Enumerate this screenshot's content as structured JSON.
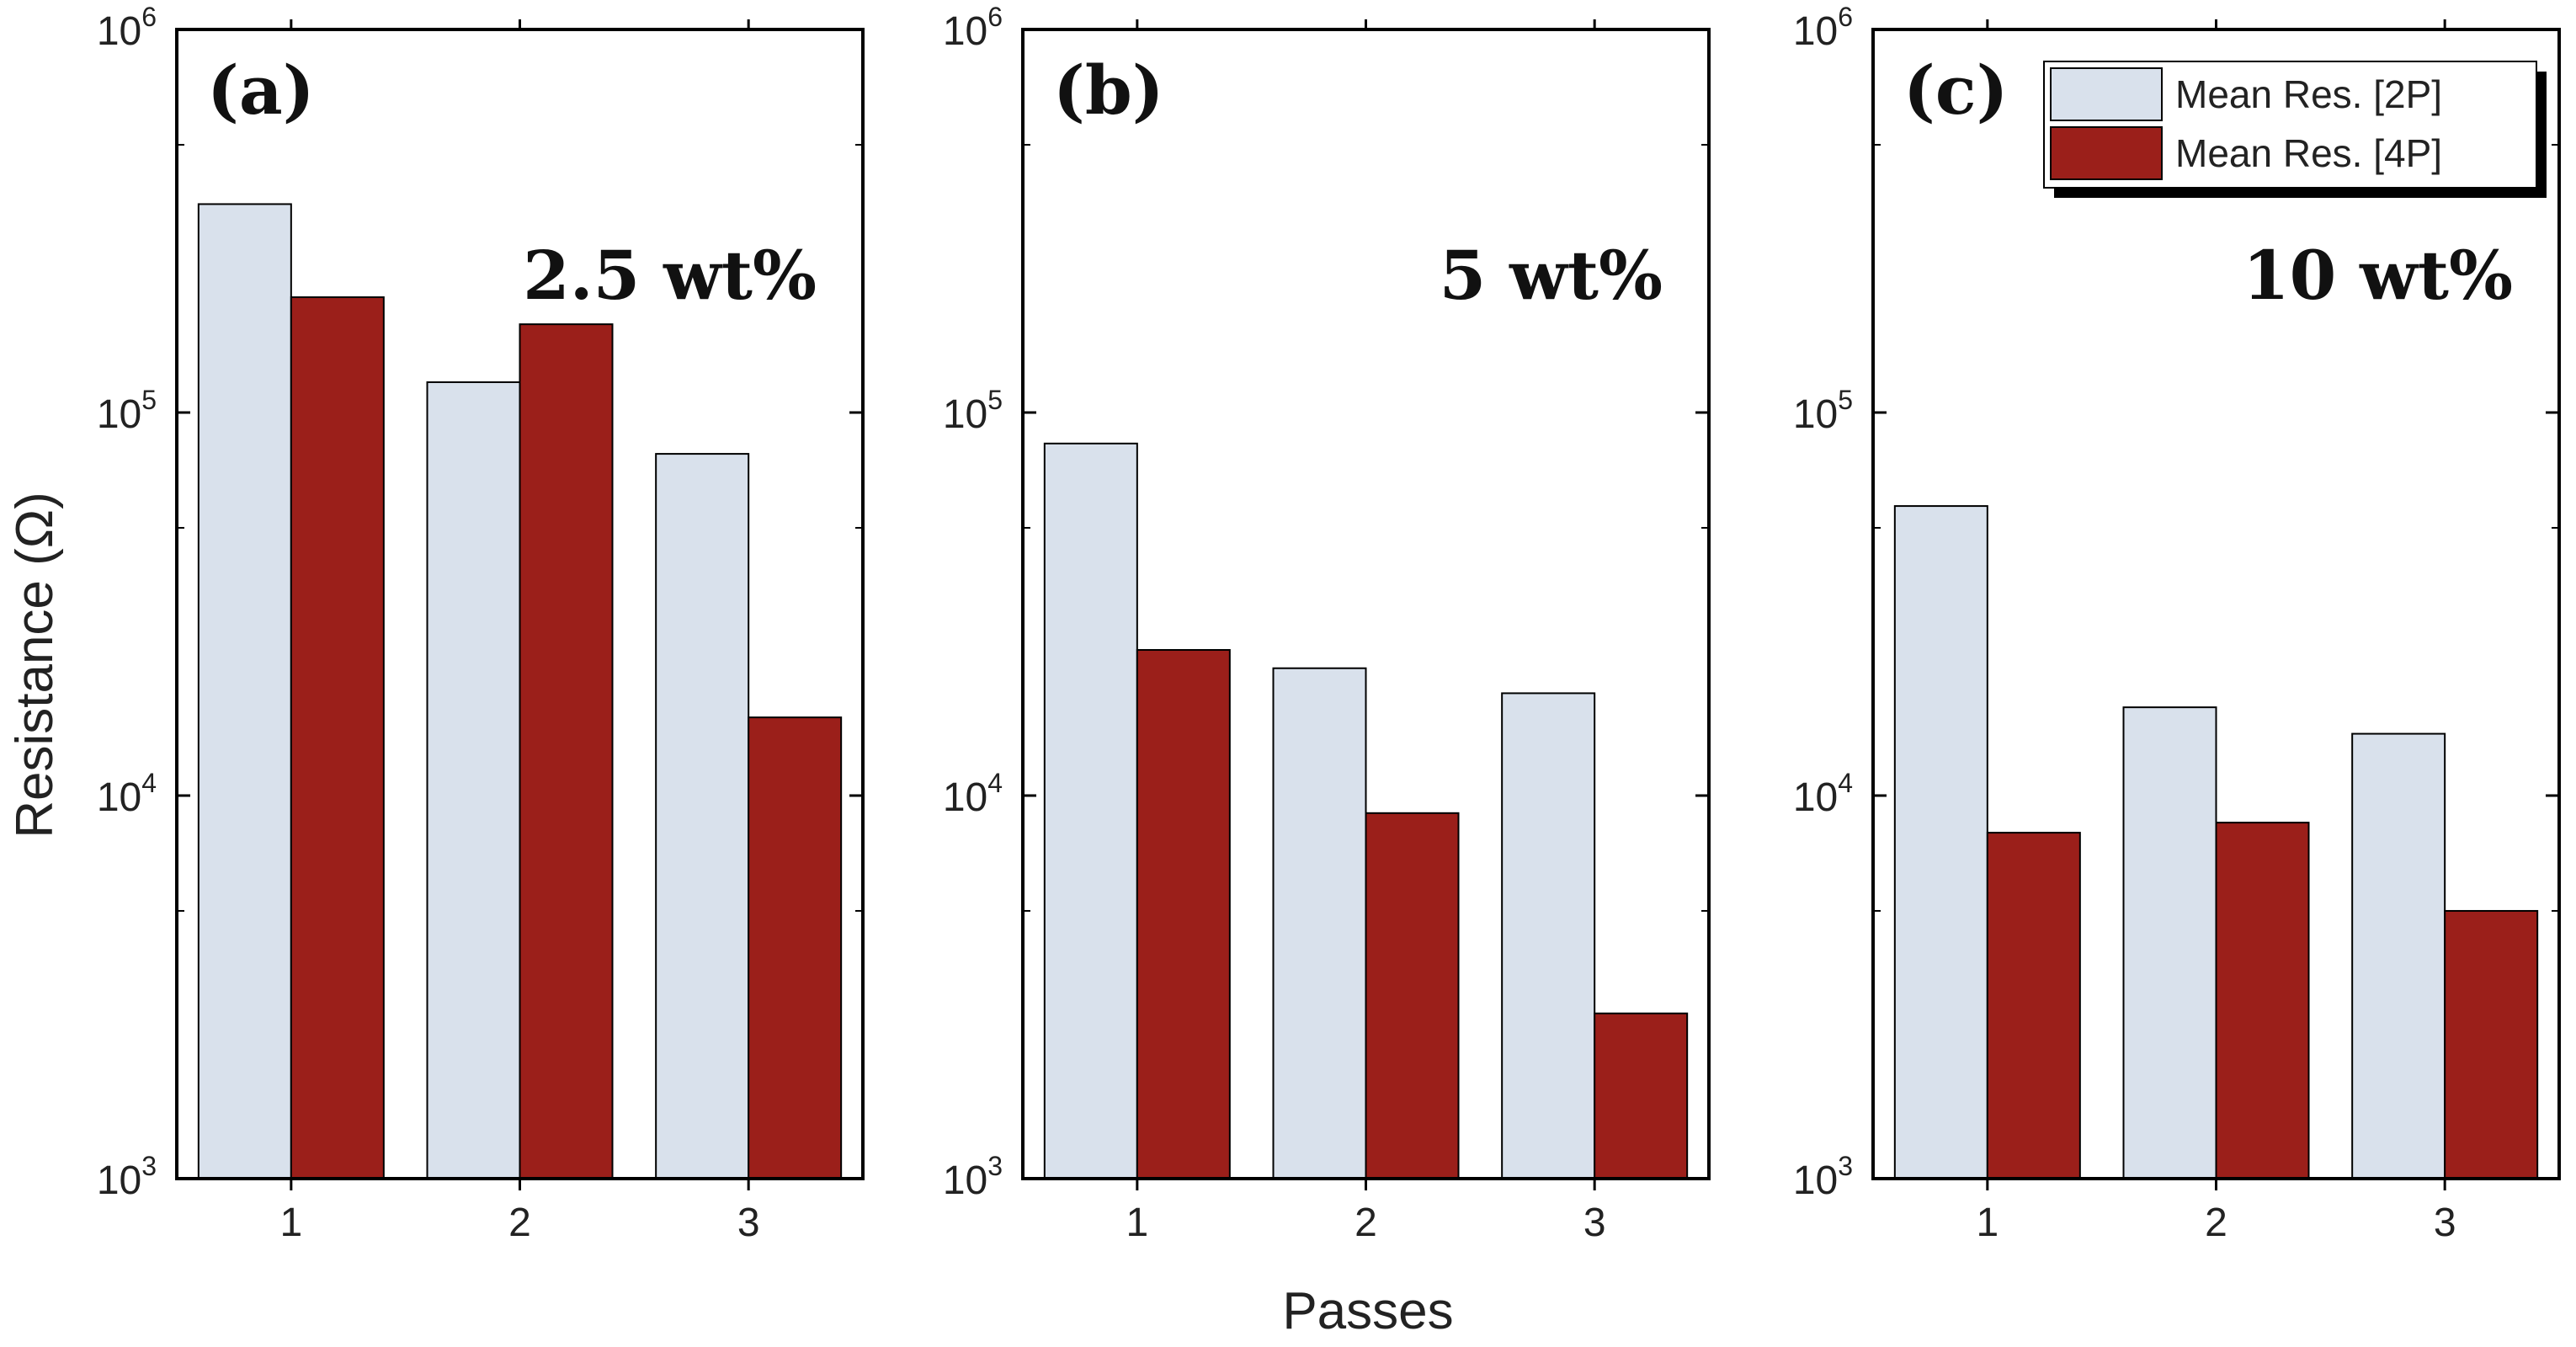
{
  "chart_data": [
    {
      "type": "bar",
      "panel_label": "(a)",
      "annotation": "2.5 wt%",
      "categories": [
        "1",
        "2",
        "3"
      ],
      "series": [
        {
          "name": "Mean Res. [2P]",
          "color": "#d9e1ec",
          "values": [
            350000,
            120000,
            78000
          ]
        },
        {
          "name": "Mean Res. [4P]",
          "color": "#9b1f1a",
          "values": [
            200000,
            170000,
            16000
          ]
        }
      ],
      "ylabel": "Resistance (Ω)",
      "yscale": "log",
      "ylim": [
        1000,
        1000000
      ],
      "yticks": [
        {
          "base": "10",
          "exp": "3"
        },
        {
          "base": "10",
          "exp": "4"
        },
        {
          "base": "10",
          "exp": "5"
        },
        {
          "base": "10",
          "exp": "6"
        }
      ]
    },
    {
      "type": "bar",
      "panel_label": "(b)",
      "annotation": "5 wt%",
      "categories": [
        "1",
        "2",
        "3"
      ],
      "series": [
        {
          "name": "Mean Res. [2P]",
          "color": "#d9e1ec",
          "values": [
            83000,
            21500,
            18500
          ]
        },
        {
          "name": "Mean Res. [4P]",
          "color": "#9b1f1a",
          "values": [
            24000,
            9000,
            2700
          ]
        }
      ],
      "yscale": "log",
      "ylim": [
        1000,
        1000000
      ],
      "yticks": [
        {
          "base": "10",
          "exp": "3"
        },
        {
          "base": "10",
          "exp": "4"
        },
        {
          "base": "10",
          "exp": "5"
        },
        {
          "base": "10",
          "exp": "6"
        }
      ]
    },
    {
      "type": "bar",
      "panel_label": "(c)",
      "annotation": "10 wt%",
      "categories": [
        "1",
        "2",
        "3"
      ],
      "series": [
        {
          "name": "Mean Res. [2P]",
          "color": "#d9e1ec",
          "values": [
            57000,
            17000,
            14500
          ]
        },
        {
          "name": "Mean Res. [4P]",
          "color": "#9b1f1a",
          "values": [
            8000,
            8500,
            5000
          ]
        }
      ],
      "yscale": "log",
      "ylim": [
        1000,
        1000000
      ],
      "yticks": [
        {
          "base": "10",
          "exp": "3"
        },
        {
          "base": "10",
          "exp": "4"
        },
        {
          "base": "10",
          "exp": "5"
        },
        {
          "base": "10",
          "exp": "6"
        }
      ],
      "legend": {
        "placement": "top-right",
        "entries": [
          {
            "label": "Mean Res. [2P]",
            "color": "#d9e1ec"
          },
          {
            "label": "Mean Res. [4P]",
            "color": "#9b1f1a"
          }
        ]
      }
    }
  ],
  "xlabel": "Passes"
}
